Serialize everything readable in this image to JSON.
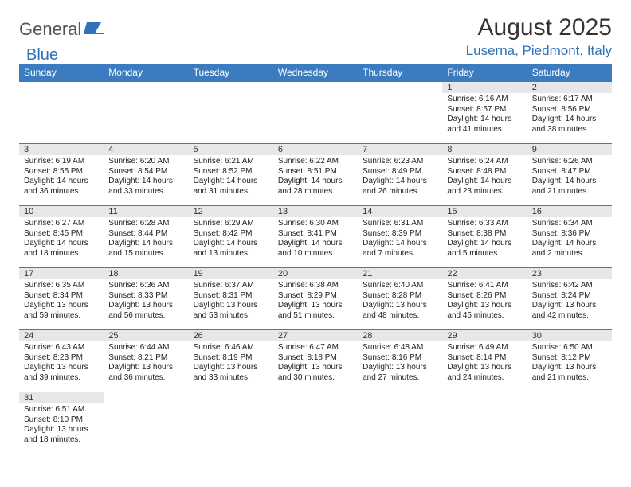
{
  "logo": {
    "text1": "General",
    "text2": "Blue"
  },
  "title": "August 2025",
  "subtitle": "Luserna, Piedmont, Italy",
  "dayHeaders": [
    "Sunday",
    "Monday",
    "Tuesday",
    "Wednesday",
    "Thursday",
    "Friday",
    "Saturday"
  ],
  "header_bg": "#3a7cbf",
  "header_fg": "#ffffff",
  "daynum_bg": "#e7e7e7",
  "border_color": "#3a7cbf",
  "weeks": [
    [
      null,
      null,
      null,
      null,
      null,
      {
        "n": "1",
        "sr": "Sunrise: 6:16 AM",
        "ss": "Sunset: 8:57 PM",
        "d1": "Daylight: 14 hours",
        "d2": "and 41 minutes."
      },
      {
        "n": "2",
        "sr": "Sunrise: 6:17 AM",
        "ss": "Sunset: 8:56 PM",
        "d1": "Daylight: 14 hours",
        "d2": "and 38 minutes."
      }
    ],
    [
      {
        "n": "3",
        "sr": "Sunrise: 6:19 AM",
        "ss": "Sunset: 8:55 PM",
        "d1": "Daylight: 14 hours",
        "d2": "and 36 minutes."
      },
      {
        "n": "4",
        "sr": "Sunrise: 6:20 AM",
        "ss": "Sunset: 8:54 PM",
        "d1": "Daylight: 14 hours",
        "d2": "and 33 minutes."
      },
      {
        "n": "5",
        "sr": "Sunrise: 6:21 AM",
        "ss": "Sunset: 8:52 PM",
        "d1": "Daylight: 14 hours",
        "d2": "and 31 minutes."
      },
      {
        "n": "6",
        "sr": "Sunrise: 6:22 AM",
        "ss": "Sunset: 8:51 PM",
        "d1": "Daylight: 14 hours",
        "d2": "and 28 minutes."
      },
      {
        "n": "7",
        "sr": "Sunrise: 6:23 AM",
        "ss": "Sunset: 8:49 PM",
        "d1": "Daylight: 14 hours",
        "d2": "and 26 minutes."
      },
      {
        "n": "8",
        "sr": "Sunrise: 6:24 AM",
        "ss": "Sunset: 8:48 PM",
        "d1": "Daylight: 14 hours",
        "d2": "and 23 minutes."
      },
      {
        "n": "9",
        "sr": "Sunrise: 6:26 AM",
        "ss": "Sunset: 8:47 PM",
        "d1": "Daylight: 14 hours",
        "d2": "and 21 minutes."
      }
    ],
    [
      {
        "n": "10",
        "sr": "Sunrise: 6:27 AM",
        "ss": "Sunset: 8:45 PM",
        "d1": "Daylight: 14 hours",
        "d2": "and 18 minutes."
      },
      {
        "n": "11",
        "sr": "Sunrise: 6:28 AM",
        "ss": "Sunset: 8:44 PM",
        "d1": "Daylight: 14 hours",
        "d2": "and 15 minutes."
      },
      {
        "n": "12",
        "sr": "Sunrise: 6:29 AM",
        "ss": "Sunset: 8:42 PM",
        "d1": "Daylight: 14 hours",
        "d2": "and 13 minutes."
      },
      {
        "n": "13",
        "sr": "Sunrise: 6:30 AM",
        "ss": "Sunset: 8:41 PM",
        "d1": "Daylight: 14 hours",
        "d2": "and 10 minutes."
      },
      {
        "n": "14",
        "sr": "Sunrise: 6:31 AM",
        "ss": "Sunset: 8:39 PM",
        "d1": "Daylight: 14 hours",
        "d2": "and 7 minutes."
      },
      {
        "n": "15",
        "sr": "Sunrise: 6:33 AM",
        "ss": "Sunset: 8:38 PM",
        "d1": "Daylight: 14 hours",
        "d2": "and 5 minutes."
      },
      {
        "n": "16",
        "sr": "Sunrise: 6:34 AM",
        "ss": "Sunset: 8:36 PM",
        "d1": "Daylight: 14 hours",
        "d2": "and 2 minutes."
      }
    ],
    [
      {
        "n": "17",
        "sr": "Sunrise: 6:35 AM",
        "ss": "Sunset: 8:34 PM",
        "d1": "Daylight: 13 hours",
        "d2": "and 59 minutes."
      },
      {
        "n": "18",
        "sr": "Sunrise: 6:36 AM",
        "ss": "Sunset: 8:33 PM",
        "d1": "Daylight: 13 hours",
        "d2": "and 56 minutes."
      },
      {
        "n": "19",
        "sr": "Sunrise: 6:37 AM",
        "ss": "Sunset: 8:31 PM",
        "d1": "Daylight: 13 hours",
        "d2": "and 53 minutes."
      },
      {
        "n": "20",
        "sr": "Sunrise: 6:38 AM",
        "ss": "Sunset: 8:29 PM",
        "d1": "Daylight: 13 hours",
        "d2": "and 51 minutes."
      },
      {
        "n": "21",
        "sr": "Sunrise: 6:40 AM",
        "ss": "Sunset: 8:28 PM",
        "d1": "Daylight: 13 hours",
        "d2": "and 48 minutes."
      },
      {
        "n": "22",
        "sr": "Sunrise: 6:41 AM",
        "ss": "Sunset: 8:26 PM",
        "d1": "Daylight: 13 hours",
        "d2": "and 45 minutes."
      },
      {
        "n": "23",
        "sr": "Sunrise: 6:42 AM",
        "ss": "Sunset: 8:24 PM",
        "d1": "Daylight: 13 hours",
        "d2": "and 42 minutes."
      }
    ],
    [
      {
        "n": "24",
        "sr": "Sunrise: 6:43 AM",
        "ss": "Sunset: 8:23 PM",
        "d1": "Daylight: 13 hours",
        "d2": "and 39 minutes."
      },
      {
        "n": "25",
        "sr": "Sunrise: 6:44 AM",
        "ss": "Sunset: 8:21 PM",
        "d1": "Daylight: 13 hours",
        "d2": "and 36 minutes."
      },
      {
        "n": "26",
        "sr": "Sunrise: 6:46 AM",
        "ss": "Sunset: 8:19 PM",
        "d1": "Daylight: 13 hours",
        "d2": "and 33 minutes."
      },
      {
        "n": "27",
        "sr": "Sunrise: 6:47 AM",
        "ss": "Sunset: 8:18 PM",
        "d1": "Daylight: 13 hours",
        "d2": "and 30 minutes."
      },
      {
        "n": "28",
        "sr": "Sunrise: 6:48 AM",
        "ss": "Sunset: 8:16 PM",
        "d1": "Daylight: 13 hours",
        "d2": "and 27 minutes."
      },
      {
        "n": "29",
        "sr": "Sunrise: 6:49 AM",
        "ss": "Sunset: 8:14 PM",
        "d1": "Daylight: 13 hours",
        "d2": "and 24 minutes."
      },
      {
        "n": "30",
        "sr": "Sunrise: 6:50 AM",
        "ss": "Sunset: 8:12 PM",
        "d1": "Daylight: 13 hours",
        "d2": "and 21 minutes."
      }
    ],
    [
      {
        "n": "31",
        "sr": "Sunrise: 6:51 AM",
        "ss": "Sunset: 8:10 PM",
        "d1": "Daylight: 13 hours",
        "d2": "and 18 minutes."
      },
      null,
      null,
      null,
      null,
      null,
      null
    ]
  ]
}
